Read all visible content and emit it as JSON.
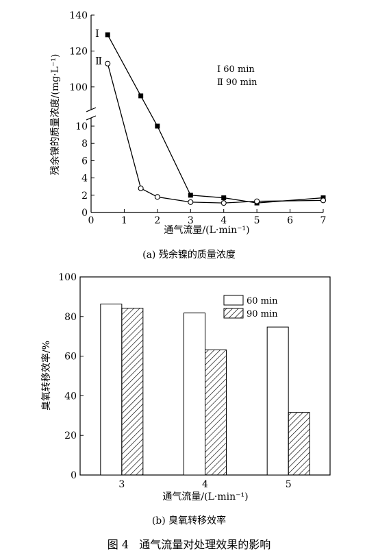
{
  "figure_caption": "图 4   通气流量对处理效果的影响",
  "chart_data": [
    {
      "type": "line",
      "caption": "(a) 残余镍的质量浓度",
      "xlabel": "通气流量/(L·min⁻¹)",
      "ylabel": "残余镍的质量浓度/(mg·L⁻¹)",
      "xlim": [
        0,
        7
      ],
      "x_ticks": [
        "0",
        "1",
        "2",
        "3",
        "4",
        "5",
        "6",
        "7"
      ],
      "y_axis_broken": true,
      "ylim_lower": [
        0,
        10
      ],
      "ylim_upper": [
        90,
        140
      ],
      "y_ticks_lower": [
        "0",
        "2",
        "4",
        "6",
        "8",
        "10"
      ],
      "y_ticks_upper": [
        "100",
        "120",
        "140"
      ],
      "legend_text": [
        "Ⅰ 60 min",
        "Ⅱ 90 min"
      ],
      "legend_placement": "top-right",
      "series": [
        {
          "label": "Ⅰ",
          "marker": "filled-square",
          "x": [
            0.5,
            1.5,
            2,
            3,
            4,
            5,
            7
          ],
          "y": [
            129,
            95,
            10,
            2.0,
            1.7,
            1.1,
            1.7
          ]
        },
        {
          "label": "Ⅱ",
          "marker": "open-circle",
          "x": [
            0.5,
            1.5,
            2,
            3,
            4,
            5,
            7
          ],
          "y": [
            113,
            2.8,
            1.8,
            1.2,
            1.1,
            1.3,
            1.4
          ]
        }
      ]
    },
    {
      "type": "bar",
      "caption": "(b) 臭氧转移效率",
      "xlabel": "通气流量/(L·min⁻¹)",
      "ylabel": "臭氧转移效率/%",
      "categories": [
        "3",
        "4",
        "5"
      ],
      "ylim": [
        0,
        100
      ],
      "y_ticks": [
        "0",
        "20",
        "40",
        "60",
        "80",
        "100"
      ],
      "legend_placement": "top-right",
      "series": [
        {
          "name": "60 min",
          "fill": "white",
          "values": [
            86.3,
            81.8,
            74.7
          ]
        },
        {
          "name": "90 min",
          "fill": "hatched",
          "values": [
            84.2,
            63.2,
            31.6
          ]
        }
      ]
    }
  ]
}
